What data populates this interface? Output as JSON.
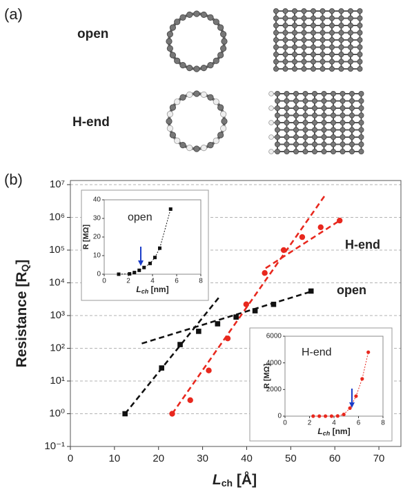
{
  "panel_a": {
    "label": "(a)",
    "rows": [
      "open",
      "H-end"
    ]
  },
  "panel_b_label": "(b)",
  "chart_data": [
    {
      "type": "scatter",
      "x_label": [
        "L",
        "ch",
        " [Å]"
      ],
      "y_label": [
        "Resistance [R",
        "Q",
        "]"
      ],
      "xlim": [
        0,
        75
      ],
      "xticks": [
        0,
        10,
        20,
        30,
        40,
        50,
        60,
        70
      ],
      "ylim": [
        0.1,
        10000000
      ],
      "log_y": true,
      "yticks": [
        {
          "value": 0.1,
          "label": "10⁻¹"
        },
        {
          "value": 1,
          "label": "10⁰"
        },
        {
          "value": 10,
          "label": "10¹"
        },
        {
          "value": 100,
          "label": "10²"
        },
        {
          "value": 1000,
          "label": "10³"
        },
        {
          "value": 10000,
          "label": "10⁴"
        },
        {
          "value": 100000,
          "label": "10⁵"
        },
        {
          "value": 1000000,
          "label": "10⁶"
        },
        {
          "value": 10000000,
          "label": "10⁷"
        }
      ],
      "grid": true,
      "series": [
        {
          "name": "open",
          "color": "#111111",
          "marker": "square",
          "x": [
            12.4,
            20.7,
            24.9,
            29.1,
            33.4,
            37.6,
            41.9,
            46.1,
            54.6
          ],
          "values": [
            1,
            25,
            130,
            330,
            560,
            900,
            1400,
            2200,
            5600
          ]
        },
        {
          "name": "H-end",
          "color": "#e8281e",
          "marker": "circle",
          "x": [
            23.1,
            27.2,
            31.4,
            35.7,
            39.9,
            44.1,
            48.4,
            52.6,
            56.8,
            61.1
          ],
          "values": [
            1,
            2.6,
            21,
            200,
            2200,
            20000,
            100000,
            250000,
            500000,
            800000
          ]
        }
      ],
      "fits": [
        {
          "color": "#111111",
          "x": [
            12.4,
            34
          ],
          "values": [
            1,
            4000
          ]
        },
        {
          "color": "#111111",
          "x": [
            16.2,
            55
          ],
          "values": [
            140,
            5600
          ]
        },
        {
          "color": "#e8281e",
          "x": [
            23.1,
            57.9
          ],
          "values": [
            1,
            5000000
          ]
        },
        {
          "color": "#e8281e",
          "x": [
            44.3,
            61.1
          ],
          "values": [
            28000,
            800000
          ]
        }
      ]
    },
    {
      "type": "scatter",
      "x_label": [
        "L",
        "ch",
        " [nm]"
      ],
      "y_label": "R [MΩ]",
      "xlim": [
        0,
        8
      ],
      "xticks": [
        0,
        2,
        4,
        6,
        8
      ],
      "ylim": [
        0,
        40
      ],
      "yticks": [
        0,
        10,
        20,
        30,
        40
      ],
      "series": [
        {
          "name": "open",
          "color": "#111111",
          "marker": "square",
          "x": [
            1.2,
            2.1,
            2.5,
            2.9,
            3.3,
            3.8,
            4.2,
            4.6,
            5.5
          ],
          "values": [
            0,
            0.2,
            0.9,
            2.1,
            3.6,
            5.8,
            9,
            14,
            35
          ]
        }
      ]
    },
    {
      "type": "scatter",
      "x_label": [
        "L",
        "ch",
        " [nm]"
      ],
      "y_label": "R [MΩ]",
      "xlim": [
        0,
        8
      ],
      "xticks": [
        0,
        2,
        4,
        6,
        8
      ],
      "ylim": [
        0,
        6000
      ],
      "yticks": [
        0,
        2000,
        4000,
        6000
      ],
      "series": [
        {
          "name": "H-end",
          "color": "#e8281e",
          "marker": "circle",
          "x": [
            2.3,
            2.8,
            3.3,
            3.8,
            4.3,
            4.8,
            5.3,
            5.8,
            6.3,
            6.8
          ],
          "values": [
            0,
            0,
            0,
            1,
            14,
            130,
            600,
            1500,
            2800,
            4800
          ]
        }
      ]
    }
  ]
}
